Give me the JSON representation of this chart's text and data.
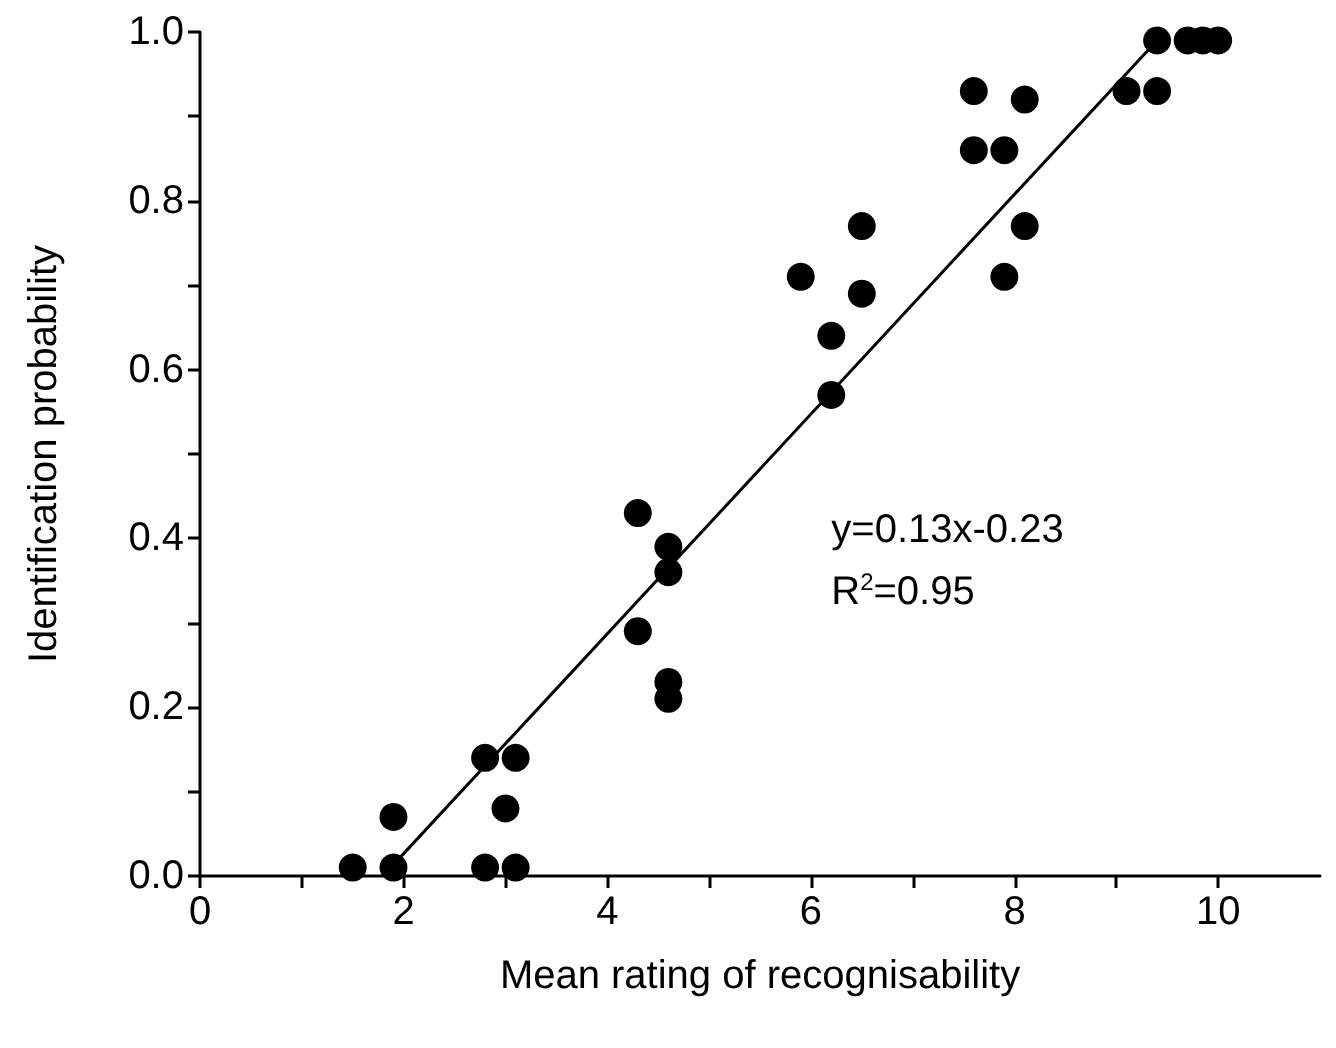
{
  "chart_data": {
    "type": "scatter",
    "xlabel": "Mean rating of recognisability",
    "ylabel": "Identification probability",
    "series": [
      {
        "color": "#000000",
        "x": [
          1.5,
          1.9,
          1.9,
          2.8,
          2.8,
          3.1,
          3.0,
          3.1,
          4.3,
          4.3,
          4.6,
          4.6,
          4.6,
          4.6,
          5.9,
          6.2,
          6.2,
          6.5,
          6.5,
          7.6,
          7.6,
          7.9,
          7.9,
          8.1,
          8.1,
          9.1,
          9.4,
          9.4,
          9.7,
          9.85,
          10.0
        ],
        "values": [
          0.01,
          0.01,
          0.07,
          0.01,
          0.14,
          0.14,
          0.08,
          0.01,
          0.43,
          0.29,
          0.39,
          0.36,
          0.23,
          0.21,
          0.71,
          0.64,
          0.57,
          0.77,
          0.69,
          0.93,
          0.86,
          0.86,
          0.71,
          0.92,
          0.77,
          0.93,
          0.93,
          0.99,
          0.99,
          0.99,
          0.99
        ]
      },
      {
        "type": "line",
        "color": "#000000",
        "marker": "none",
        "x": [
          1.95,
          9.4
        ],
        "values": [
          0.02,
          0.99
        ]
      }
    ],
    "xlim": [
      0,
      11
    ],
    "ylim": [
      0,
      1
    ],
    "xticks": [
      0,
      {
        "value": 1,
        "label": null
      },
      2,
      {
        "value": 3,
        "label": null
      },
      4,
      {
        "value": 5,
        "label": null
      },
      6,
      {
        "value": 7,
        "label": null
      },
      8,
      {
        "value": 9,
        "label": null
      },
      10
    ],
    "yticks": [
      "0.0",
      {
        "value": 0.1,
        "label": null
      },
      {
        "value": 0.2,
        "label": "0.2"
      },
      {
        "value": 0.3,
        "label": null
      },
      {
        "value": 0.4,
        "label": "0.4"
      },
      {
        "value": 0.5,
        "label": null
      },
      {
        "value": 0.6,
        "label": "0.6"
      },
      {
        "value": 0.7,
        "label": null
      },
      {
        "value": 0.8,
        "label": "0.8"
      },
      {
        "value": 0.9,
        "label": null
      },
      {
        "value": 1,
        "label": "1.0"
      }
    ],
    "annotations": [
      "y=0.13x-0.23",
      "R$^{2}$=0.95"
    ],
    "marker": "circle"
  }
}
